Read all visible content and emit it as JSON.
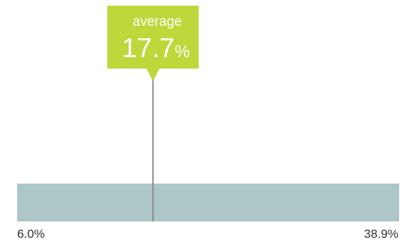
{
  "chart_data": {
    "type": "bar",
    "min_label": "6.0%",
    "max_label": "38.9%",
    "min": 6.0,
    "max": 38.9,
    "average": 17.7,
    "average_caption": "average",
    "average_number": "17.7",
    "average_unit": "%"
  },
  "colors": {
    "range_bar": "#adc6c8",
    "callout": "#bed73a",
    "callout_text": "#ffffff",
    "marker_line": "#8a8a8a"
  }
}
